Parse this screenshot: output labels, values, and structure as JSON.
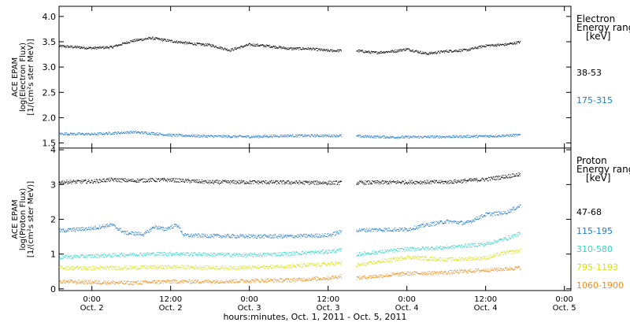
{
  "chart_data": {
    "type": "scatter",
    "x_axis": {
      "label": "hours:minutes, Oct.  1, 2011 - Oct.  5, 2011",
      "range": [
        "2011-10-01T19:00",
        "2011-10-05T01:00"
      ],
      "ticks": [
        {
          "time": "2011-10-02T00:00",
          "label_top": "0:00",
          "label_bottom": "Oct. 2"
        },
        {
          "time": "2011-10-02T12:00",
          "label_top": "12:00",
          "label_bottom": "Oct. 2"
        },
        {
          "time": "2011-10-03T00:00",
          "label_top": "0:00",
          "label_bottom": "Oct. 3"
        },
        {
          "time": "2011-10-03T12:00",
          "label_top": "12:00",
          "label_bottom": "Oct. 3"
        },
        {
          "time": "2011-10-04T00:00",
          "label_top": "0:00",
          "label_bottom": "Oct. 4"
        },
        {
          "time": "2011-10-04T12:00",
          "label_top": "12:00",
          "label_bottom": "Oct. 4"
        },
        {
          "time": "2011-10-05T00:00",
          "label_top": "0:00",
          "label_bottom": "Oct. 5"
        }
      ],
      "data_gap": [
        "2011-10-03T14:00",
        "2011-10-03T16:15"
      ]
    },
    "panels": [
      {
        "name": "electron",
        "ylabel_lines": [
          "ACE EPAM",
          "log(Electron Flux)",
          "[1/(cm²s ster MeV)]"
        ],
        "ylim": [
          1.4,
          4.2
        ],
        "y_ticks": [
          1.5,
          2.0,
          2.5,
          3.0,
          3.5,
          4.0
        ],
        "y_tick_labels": [
          "1.5",
          "2.0",
          "2.5",
          "3.0",
          "3.5",
          "4.0"
        ],
        "legend_title": [
          "Electron",
          "Energy range",
          "[keV]"
        ],
        "series": [
          {
            "name": "38-53",
            "color": "#000000",
            "points": [
              [
                "2011-10-01T19:00",
                3.42
              ],
              [
                "2011-10-02T00:00",
                3.38
              ],
              [
                "2011-10-02T03:00",
                3.4
              ],
              [
                "2011-10-02T06:00",
                3.52
              ],
              [
                "2011-10-02T09:00",
                3.58
              ],
              [
                "2011-10-02T12:00",
                3.52
              ],
              [
                "2011-10-02T15:00",
                3.47
              ],
              [
                "2011-10-02T18:00",
                3.44
              ],
              [
                "2011-10-02T21:00",
                3.34
              ],
              [
                "2011-10-03T00:00",
                3.45
              ],
              [
                "2011-10-03T03:00",
                3.42
              ],
              [
                "2011-10-03T06:00",
                3.37
              ],
              [
                "2011-10-03T09:00",
                3.37
              ],
              [
                "2011-10-03T12:00",
                3.33
              ],
              [
                "2011-10-03T14:00",
                3.33
              ],
              [
                "2011-10-03T16:15",
                3.33
              ],
              [
                "2011-10-03T19:00",
                3.29
              ],
              [
                "2011-10-03T22:00",
                3.32
              ],
              [
                "2011-10-04T00:00",
                3.36
              ],
              [
                "2011-10-04T03:00",
                3.27
              ],
              [
                "2011-10-04T06:00",
                3.32
              ],
              [
                "2011-10-04T09:00",
                3.34
              ],
              [
                "2011-10-04T12:00",
                3.43
              ],
              [
                "2011-10-04T15:00",
                3.45
              ],
              [
                "2011-10-04T17:15",
                3.5
              ]
            ]
          },
          {
            "name": "175-315",
            "color": "#1f7ad0",
            "points": [
              [
                "2011-10-01T19:00",
                1.69
              ],
              [
                "2011-10-02T00:00",
                1.68
              ],
              [
                "2011-10-02T03:00",
                1.7
              ],
              [
                "2011-10-02T06:00",
                1.72
              ],
              [
                "2011-10-02T09:00",
                1.7
              ],
              [
                "2011-10-02T12:00",
                1.66
              ],
              [
                "2011-10-02T18:00",
                1.64
              ],
              [
                "2011-10-03T00:00",
                1.63
              ],
              [
                "2011-10-03T06:00",
                1.65
              ],
              [
                "2011-10-03T12:00",
                1.65
              ],
              [
                "2011-10-03T14:00",
                1.65
              ],
              [
                "2011-10-03T16:15",
                1.64
              ],
              [
                "2011-10-03T22:00",
                1.62
              ],
              [
                "2011-10-04T06:00",
                1.63
              ],
              [
                "2011-10-04T12:00",
                1.64
              ],
              [
                "2011-10-04T17:15",
                1.66
              ]
            ]
          }
        ]
      },
      {
        "name": "proton",
        "ylabel_lines": [
          "ACE EPAM",
          "log(Proton Flux)",
          "[1/(cm²s ster MeV)]"
        ],
        "ylim": [
          -0.05,
          4.05
        ],
        "y_ticks": [
          0,
          1,
          2,
          3,
          4
        ],
        "y_tick_labels": [
          "0",
          "1",
          "2",
          "3",
          "4"
        ],
        "legend_title": [
          "Proton",
          "Energy range",
          "[keV]"
        ],
        "series": [
          {
            "name": "47-68",
            "color": "#000000",
            "points": [
              [
                "2011-10-01T19:00",
                3.08
              ],
              [
                "2011-10-02T00:00",
                3.1
              ],
              [
                "2011-10-02T03:00",
                3.15
              ],
              [
                "2011-10-02T06:00",
                3.12
              ],
              [
                "2011-10-02T09:00",
                3.14
              ],
              [
                "2011-10-02T12:00",
                3.14
              ],
              [
                "2011-10-02T18:00",
                3.08
              ],
              [
                "2011-10-03T00:00",
                3.08
              ],
              [
                "2011-10-03T06:00",
                3.07
              ],
              [
                "2011-10-03T12:00",
                3.06
              ],
              [
                "2011-10-03T14:00",
                3.06
              ],
              [
                "2011-10-03T16:15",
                3.06
              ],
              [
                "2011-10-04T00:00",
                3.08
              ],
              [
                "2011-10-04T06:00",
                3.08
              ],
              [
                "2011-10-04T12:00",
                3.16
              ],
              [
                "2011-10-04T17:15",
                3.3
              ]
            ]
          },
          {
            "name": "115-195",
            "color": "#1f7ad0",
            "points": [
              [
                "2011-10-01T19:00",
                1.68
              ],
              [
                "2011-10-02T00:00",
                1.75
              ],
              [
                "2011-10-02T03:00",
                1.85
              ],
              [
                "2011-10-02T05:00",
                1.62
              ],
              [
                "2011-10-02T08:00",
                1.58
              ],
              [
                "2011-10-02T09:30",
                1.8
              ],
              [
                "2011-10-02T11:00",
                1.72
              ],
              [
                "2011-10-02T13:00",
                1.85
              ],
              [
                "2011-10-02T14:00",
                1.55
              ],
              [
                "2011-10-02T18:00",
                1.53
              ],
              [
                "2011-10-03T00:00",
                1.52
              ],
              [
                "2011-10-03T06:00",
                1.52
              ],
              [
                "2011-10-03T12:00",
                1.55
              ],
              [
                "2011-10-03T14:00",
                1.65
              ],
              [
                "2011-10-03T16:15",
                1.7
              ],
              [
                "2011-10-04T00:00",
                1.72
              ],
              [
                "2011-10-04T03:00",
                1.85
              ],
              [
                "2011-10-04T06:00",
                1.95
              ],
              [
                "2011-10-04T09:00",
                1.9
              ],
              [
                "2011-10-04T12:00",
                2.15
              ],
              [
                "2011-10-04T15:00",
                2.2
              ],
              [
                "2011-10-04T17:15",
                2.4
              ]
            ]
          },
          {
            "name": "310-580",
            "color": "#2fd6c8",
            "points": [
              [
                "2011-10-01T19:00",
                0.92
              ],
              [
                "2011-10-02T00:00",
                0.95
              ],
              [
                "2011-10-02T06:00",
                1.0
              ],
              [
                "2011-10-02T12:00",
                1.02
              ],
              [
                "2011-10-02T18:00",
                1.0
              ],
              [
                "2011-10-03T00:00",
                0.98
              ],
              [
                "2011-10-03T06:00",
                1.02
              ],
              [
                "2011-10-03T12:00",
                1.08
              ],
              [
                "2011-10-03T14:00",
                1.12
              ],
              [
                "2011-10-03T16:15",
                1.0
              ],
              [
                "2011-10-04T00:00",
                1.15
              ],
              [
                "2011-10-04T06:00",
                1.2
              ],
              [
                "2011-10-04T12:00",
                1.3
              ],
              [
                "2011-10-04T15:00",
                1.45
              ],
              [
                "2011-10-04T17:15",
                1.6
              ]
            ]
          },
          {
            "name": "795-1193",
            "color": "#d8e010",
            "points": [
              [
                "2011-10-01T19:00",
                0.62
              ],
              [
                "2011-10-02T00:00",
                0.6
              ],
              [
                "2011-10-02T06:00",
                0.62
              ],
              [
                "2011-10-02T12:00",
                0.64
              ],
              [
                "2011-10-02T18:00",
                0.62
              ],
              [
                "2011-10-03T00:00",
                0.62
              ],
              [
                "2011-10-03T06:00",
                0.66
              ],
              [
                "2011-10-03T12:00",
                0.72
              ],
              [
                "2011-10-03T14:00",
                0.75
              ],
              [
                "2011-10-03T16:15",
                0.68
              ],
              [
                "2011-10-04T00:00",
                0.92
              ],
              [
                "2011-10-04T06:00",
                0.85
              ],
              [
                "2011-10-04T12:00",
                0.9
              ],
              [
                "2011-10-04T15:00",
                1.05
              ],
              [
                "2011-10-04T17:15",
                1.1
              ]
            ]
          },
          {
            "name": "1060-1900",
            "color": "#f08c1a",
            "points": [
              [
                "2011-10-01T19:00",
                0.22
              ],
              [
                "2011-10-02T00:00",
                0.2
              ],
              [
                "2011-10-02T06:00",
                0.18
              ],
              [
                "2011-10-02T12:00",
                0.22
              ],
              [
                "2011-10-02T18:00",
                0.22
              ],
              [
                "2011-10-03T00:00",
                0.24
              ],
              [
                "2011-10-03T06:00",
                0.26
              ],
              [
                "2011-10-03T12:00",
                0.32
              ],
              [
                "2011-10-03T14:00",
                0.38
              ],
              [
                "2011-10-03T16:15",
                0.32
              ],
              [
                "2011-10-04T00:00",
                0.45
              ],
              [
                "2011-10-04T06:00",
                0.48
              ],
              [
                "2011-10-04T12:00",
                0.55
              ],
              [
                "2011-10-04T15:00",
                0.58
              ],
              [
                "2011-10-04T17:15",
                0.62
              ]
            ]
          }
        ]
      }
    ]
  }
}
